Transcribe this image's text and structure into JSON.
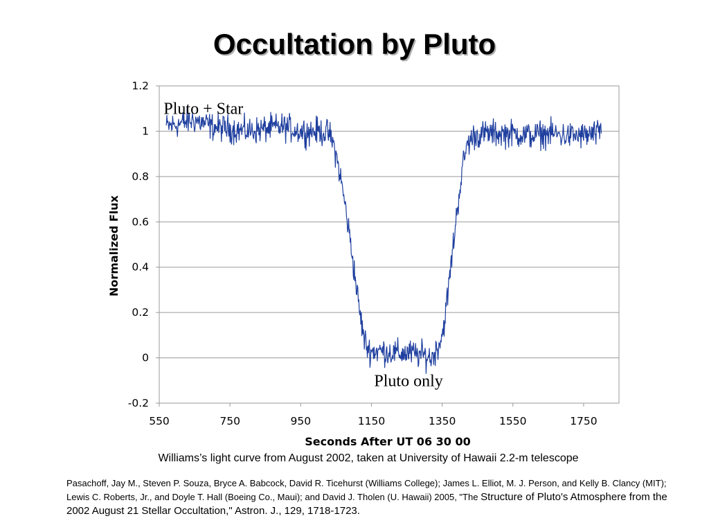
{
  "title": "Occultation by Pluto",
  "chart_data": {
    "type": "line",
    "xlabel": "Seconds After UT 06 30 00",
    "ylabel": "Normalized Flux",
    "xlim": [
      550,
      1850
    ],
    "ylim": [
      -0.2,
      1.2
    ],
    "x_ticks": [
      "550",
      "750",
      "950",
      "1150",
      "1350",
      "1550",
      "1750"
    ],
    "y_ticks": [
      "1.2",
      "1",
      "0.8",
      "0.6",
      "0.4",
      "0.2",
      "0",
      "-0.2"
    ],
    "grid": "horizontal",
    "series": [
      {
        "color": "#1f3f9f",
        "x": [
          570,
          600,
          650,
          700,
          750,
          800,
          850,
          900,
          950,
          1000,
          1030,
          1045,
          1060,
          1075,
          1090,
          1100,
          1110,
          1120,
          1130,
          1140,
          1150,
          1180,
          1220,
          1260,
          1300,
          1320,
          1335,
          1350,
          1360,
          1370,
          1380,
          1390,
          1400,
          1410,
          1420,
          1440,
          1480,
          1550,
          1600,
          1650,
          1700,
          1750,
          1800
        ],
        "y": [
          1.02,
          1.03,
          1.05,
          1.02,
          1.01,
          1.0,
          1.01,
          1.02,
          1.0,
          1.0,
          0.99,
          0.93,
          0.82,
          0.68,
          0.52,
          0.4,
          0.28,
          0.17,
          0.08,
          0.04,
          0.03,
          0.03,
          0.02,
          0.02,
          0.01,
          0.0,
          0.04,
          0.1,
          0.2,
          0.34,
          0.48,
          0.62,
          0.75,
          0.86,
          0.94,
          0.98,
          0.99,
          0.99,
          0.98,
          0.99,
          0.98,
          0.98,
          0.99
        ]
      }
    ],
    "annotations": [
      {
        "text": "Pluto + Star",
        "x": 675,
        "y": 1.1
      },
      {
        "text": "Pluto only",
        "x": 1255,
        "y": -0.1
      }
    ]
  },
  "caption": "Williams’s  light curve from August 2002, taken at University of Hawaii 2.2-m telescope",
  "reference": {
    "text": "Pasachoff, Jay M., Steven P. Souza, Bryce A. Babcock, David R. Ticehurst (Williams College); James L. Elliot, M. J. Person, and Kelly B. Clancy (MIT); Lewis C. Roberts, Jr., and Doyle T. Hall (Boeing Co., Maui); and David J. Tholen (U. Hawaii) 2005,  \"The ",
    "text_large": "Structure of Pluto's Atmosphere from the 2002 August 21 Stellar Occultation,\" Astron. J., 129, 1718-1723."
  }
}
